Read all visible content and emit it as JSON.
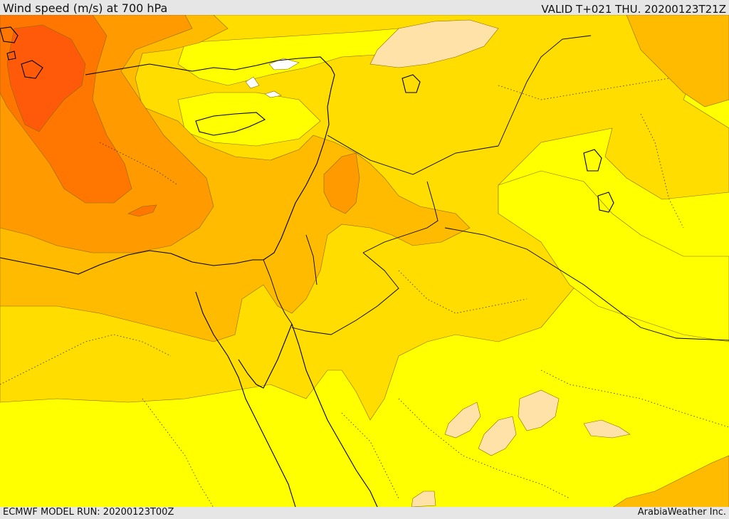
{
  "header": {
    "title": "Wind speed (m/s) at 700 hPa",
    "valid_time": "VALID T+021 THU. 20200123T21Z"
  },
  "footer": {
    "model_run": "ECMWF MODEL RUN: 20200123T00Z",
    "credit": "ArabiaWeather Inc."
  },
  "map": {
    "field": "wind speed 700 hPa",
    "colors": {
      "band_lowest": "#ffe2a8",
      "band_low": "#ffff00",
      "band_mid_low": "#ffdd00",
      "band_mid": "#ffbb00",
      "band_high": "#ff9a00",
      "band_higher": "#ff7700",
      "band_highest": "#ff5a0a",
      "calm_white": "#ffffff",
      "coastline": "#000000"
    }
  }
}
